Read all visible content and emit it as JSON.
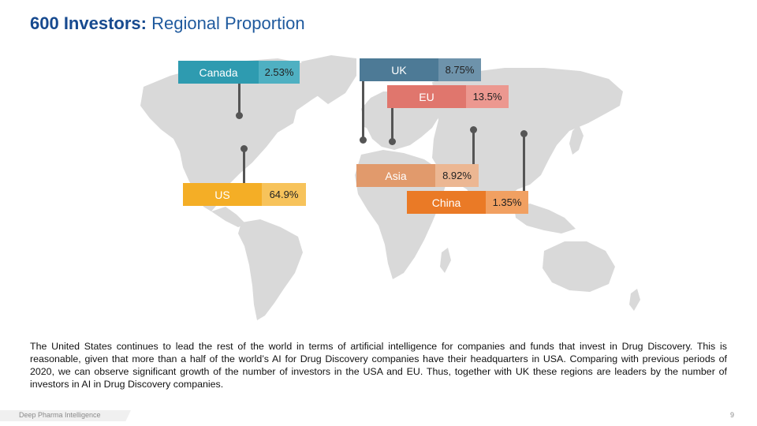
{
  "title": {
    "bold": "600 Investors:",
    "rest": "Regional Proportion"
  },
  "regions": [
    {
      "name": "Canada",
      "value": "2.53%",
      "color": "#2e9bb0",
      "value_bg": "#4fb0c2"
    },
    {
      "name": "UK",
      "value": "8.75%",
      "color": "#4d7a96",
      "value_bg": "#6e93ab"
    },
    {
      "name": "EU",
      "value": "13.5%",
      "color": "#e0766d",
      "value_bg": "#ec9890"
    },
    {
      "name": "Asia",
      "value": "8.92%",
      "color": "#e19a6c",
      "value_bg": "#ecb793"
    },
    {
      "name": "China",
      "value": "1.35%",
      "color": "#ea7a26",
      "value_bg": "#f1a061"
    },
    {
      "name": "US",
      "value": "64.9%",
      "color": "#f4ae26",
      "value_bg": "#f7c35b"
    }
  ],
  "body_text": "The United States continues to lead the rest of the world in terms of artificial intelligence for companies and funds that invest in Drug Discovery. This is reasonable, given that more than a half of the world’s AI for Drug Discovery companies have their headquarters in USA. Comparing with previous periods of 2020, we can observe significant growth of the number of investors in the USA and EU. Thus, together with UK these regions are leaders by the number of investors in AI in Drug Discovery companies.",
  "footer": {
    "brand": "Deep Pharma Intelligence",
    "page": "9"
  }
}
